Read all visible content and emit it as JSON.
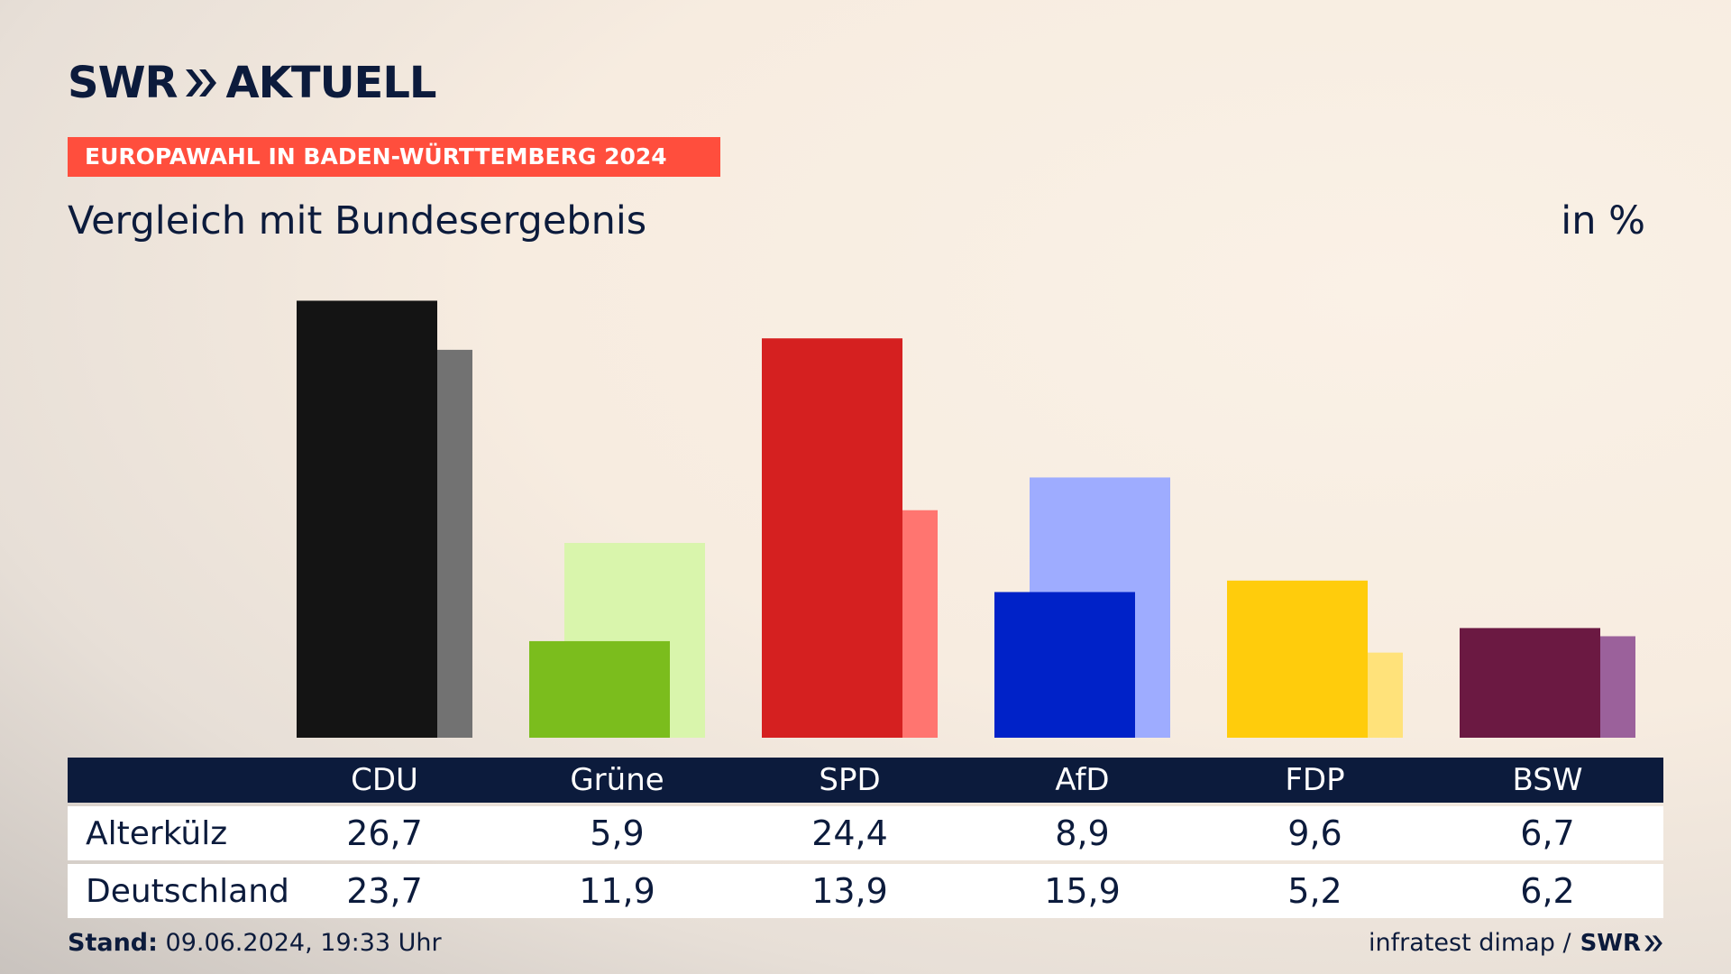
{
  "brand": {
    "name": "SWR",
    "product": "AKTUELL"
  },
  "topic_tag": "EUROPAWAHL IN BADEN-WÜRTTEMBERG 2024",
  "subtitle": "Vergleich mit Bundesergebnis",
  "unit": "in %",
  "table": {
    "rows": [
      {
        "label": "Alterkülz",
        "values": [
          "26,7",
          "5,9",
          "24,4",
          "8,9",
          "9,6",
          "6,7"
        ]
      },
      {
        "label": "Deutschland",
        "values": [
          "23,7",
          "11,9",
          "13,9",
          "15,9",
          "5,2",
          "6,2"
        ]
      }
    ]
  },
  "footer": {
    "stand_label": "Stand:",
    "stand_value": "09.06.2024, 19:33 Uhr",
    "source": "infratest dimap /",
    "source_brand": "SWR"
  },
  "chart_data": {
    "type": "bar",
    "categories": [
      "CDU",
      "Grüne",
      "SPD",
      "AfD",
      "FDP",
      "BSW"
    ],
    "series": [
      {
        "name": "Alterkülz",
        "values": [
          26.7,
          5.9,
          24.4,
          8.9,
          9.6,
          6.7
        ]
      },
      {
        "name": "Deutschland",
        "values": [
          23.7,
          11.9,
          13.9,
          15.9,
          5.2,
          6.2
        ]
      }
    ],
    "colors_primary": [
      "#141414",
      "#7bbd1d",
      "#d52020",
      "#0022c8",
      "#ffcc0c",
      "#6b1942"
    ],
    "colors_secondary": [
      "#727272",
      "#d9f5ac",
      "#ff7570",
      "#9eacff",
      "#ffe27a",
      "#9b619b"
    ],
    "ylim": [
      0,
      27
    ],
    "grid": false,
    "legend": "none"
  }
}
